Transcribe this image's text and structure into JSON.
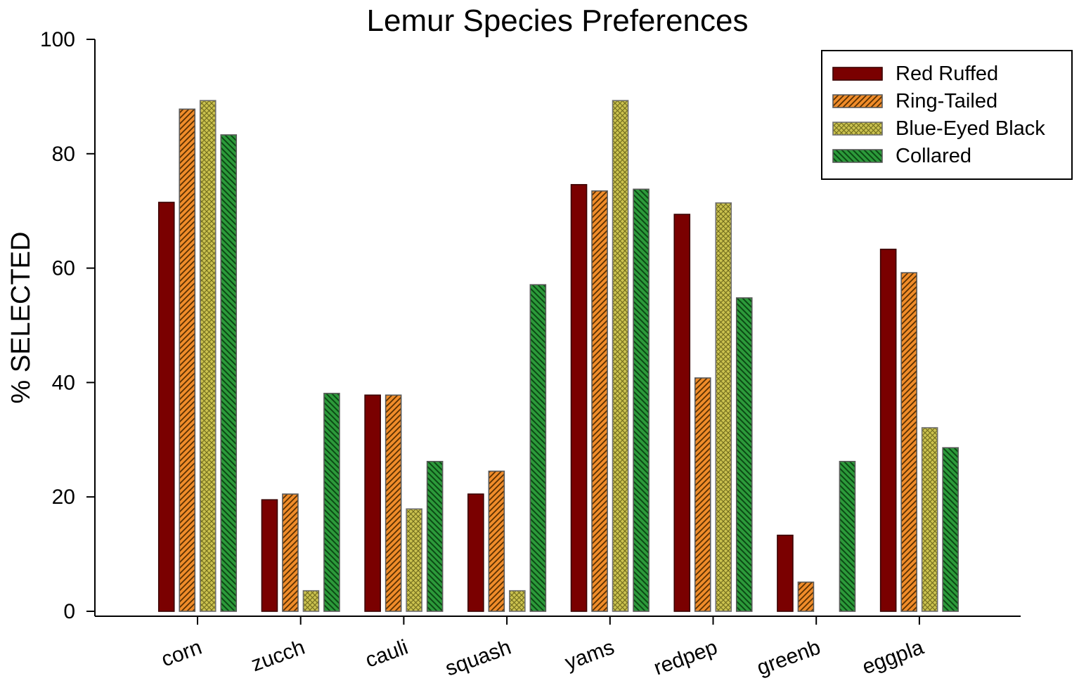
{
  "chart_data": {
    "type": "bar",
    "title": "Lemur Species Preferences",
    "xlabel": "",
    "ylabel": "% SELECTED",
    "ylim": [
      0,
      100
    ],
    "yticks": [
      "0",
      "20",
      "40",
      "60",
      "80",
      "100"
    ],
    "categories": [
      "corn",
      "zucch",
      "cauli",
      "squash",
      "yams",
      "redpep",
      "greenb",
      "eggpla"
    ],
    "series": [
      {
        "name": "Red Ruffed",
        "color": "#7a0000",
        "pattern": "solid",
        "values": [
          71.5,
          19.5,
          37.8,
          20.5,
          74.6,
          69.4,
          13.3,
          63.3
        ]
      },
      {
        "name": "Ring-Tailed",
        "color": "#f08c2a",
        "pattern": "diagonal-hatch",
        "values": [
          87.8,
          20.5,
          37.8,
          24.5,
          73.5,
          40.8,
          5.1,
          59.2
        ]
      },
      {
        "name": "Blue-Eyed Black",
        "color": "#c8be4a",
        "pattern": "crosshatch",
        "values": [
          89.3,
          3.6,
          17.9,
          3.6,
          89.3,
          71.4,
          0,
          32.1
        ]
      },
      {
        "name": "Collared",
        "color": "#1f8a2e",
        "pattern": "reverse-diagonal-hatch",
        "values": [
          83.3,
          38.1,
          26.2,
          57.1,
          73.8,
          54.8,
          26.2,
          28.6
        ]
      }
    ],
    "legend_position": "top-right",
    "grid": false
  }
}
